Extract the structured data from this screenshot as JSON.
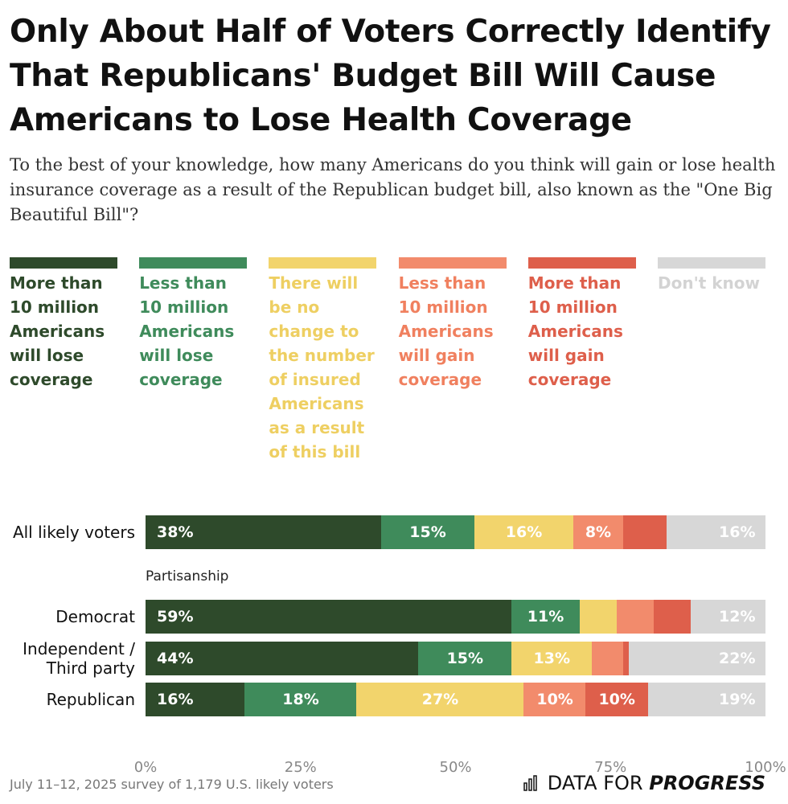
{
  "chart_data": {
    "type": "stacked-bar-horizontal",
    "title": "Only About Half of Voters Correctly Identify That Republicans' Budget Bill Will Cause Americans to Lose Health Coverage",
    "subtitle": "To the best of your knowledge, how many Americans do you think will gain or lose health insurance coverage as a result of the Republican budget bill, also known as the \"One Big Beautiful Bill\"?",
    "group_label": "Partisanship",
    "categories": [
      "All likely voters",
      "Democrat",
      "Independent / Third party",
      "Republican"
    ],
    "series": [
      {
        "name": "More than 10 million Americans will lose coverage",
        "color": "#2e4a2b",
        "text_color": "#2e4a2b",
        "values": [
          38,
          59,
          44,
          16
        ],
        "value_labels": [
          "38%",
          "59%",
          "44%",
          "16%"
        ]
      },
      {
        "name": "Less than 10 million Americans will lose coverage",
        "color": "#3f8b5b",
        "text_color": "#3f8b5b",
        "values": [
          15,
          11,
          15,
          18
        ],
        "value_labels": [
          "15%",
          "11%",
          "15%",
          "18%"
        ]
      },
      {
        "name": "There will be no change to the number of insured Americans as a result of this bill",
        "color": "#f2d46c",
        "text_color": "#eecf62",
        "values": [
          16,
          6,
          13,
          27
        ],
        "value_labels": [
          "16%",
          null,
          "13%",
          "27%"
        ]
      },
      {
        "name": "Less than 10 million Americans will gain coverage",
        "color": "#f28b6c",
        "text_color": "#f0805f",
        "values": [
          8,
          6,
          5,
          10
        ],
        "value_labels": [
          "8%",
          null,
          null,
          "10%"
        ]
      },
      {
        "name": "More than 10 million Americans will gain coverage",
        "color": "#de5f4b",
        "text_color": "#de5f4b",
        "values": [
          7,
          6,
          1,
          10
        ],
        "value_labels": [
          null,
          null,
          null,
          "10%"
        ]
      },
      {
        "name": "Don't know",
        "color": "#d7d7d7",
        "text_color": "#d3d3d3",
        "values": [
          16,
          12,
          22,
          19
        ],
        "value_labels": [
          "16%",
          "12%",
          "22%",
          "19%"
        ]
      }
    ],
    "xlim": [
      0,
      100
    ],
    "xticks": [
      {
        "value": 0,
        "label": "0%"
      },
      {
        "value": 25,
        "label": "25%"
      },
      {
        "value": 50,
        "label": "50%"
      },
      {
        "value": 75,
        "label": "75%"
      },
      {
        "value": 100,
        "label": "100%"
      }
    ],
    "source": "July 11–12, 2025 survey of 1,179 U.S. likely voters",
    "logo": [
      "DATA FOR",
      "PROGRESS"
    ]
  }
}
